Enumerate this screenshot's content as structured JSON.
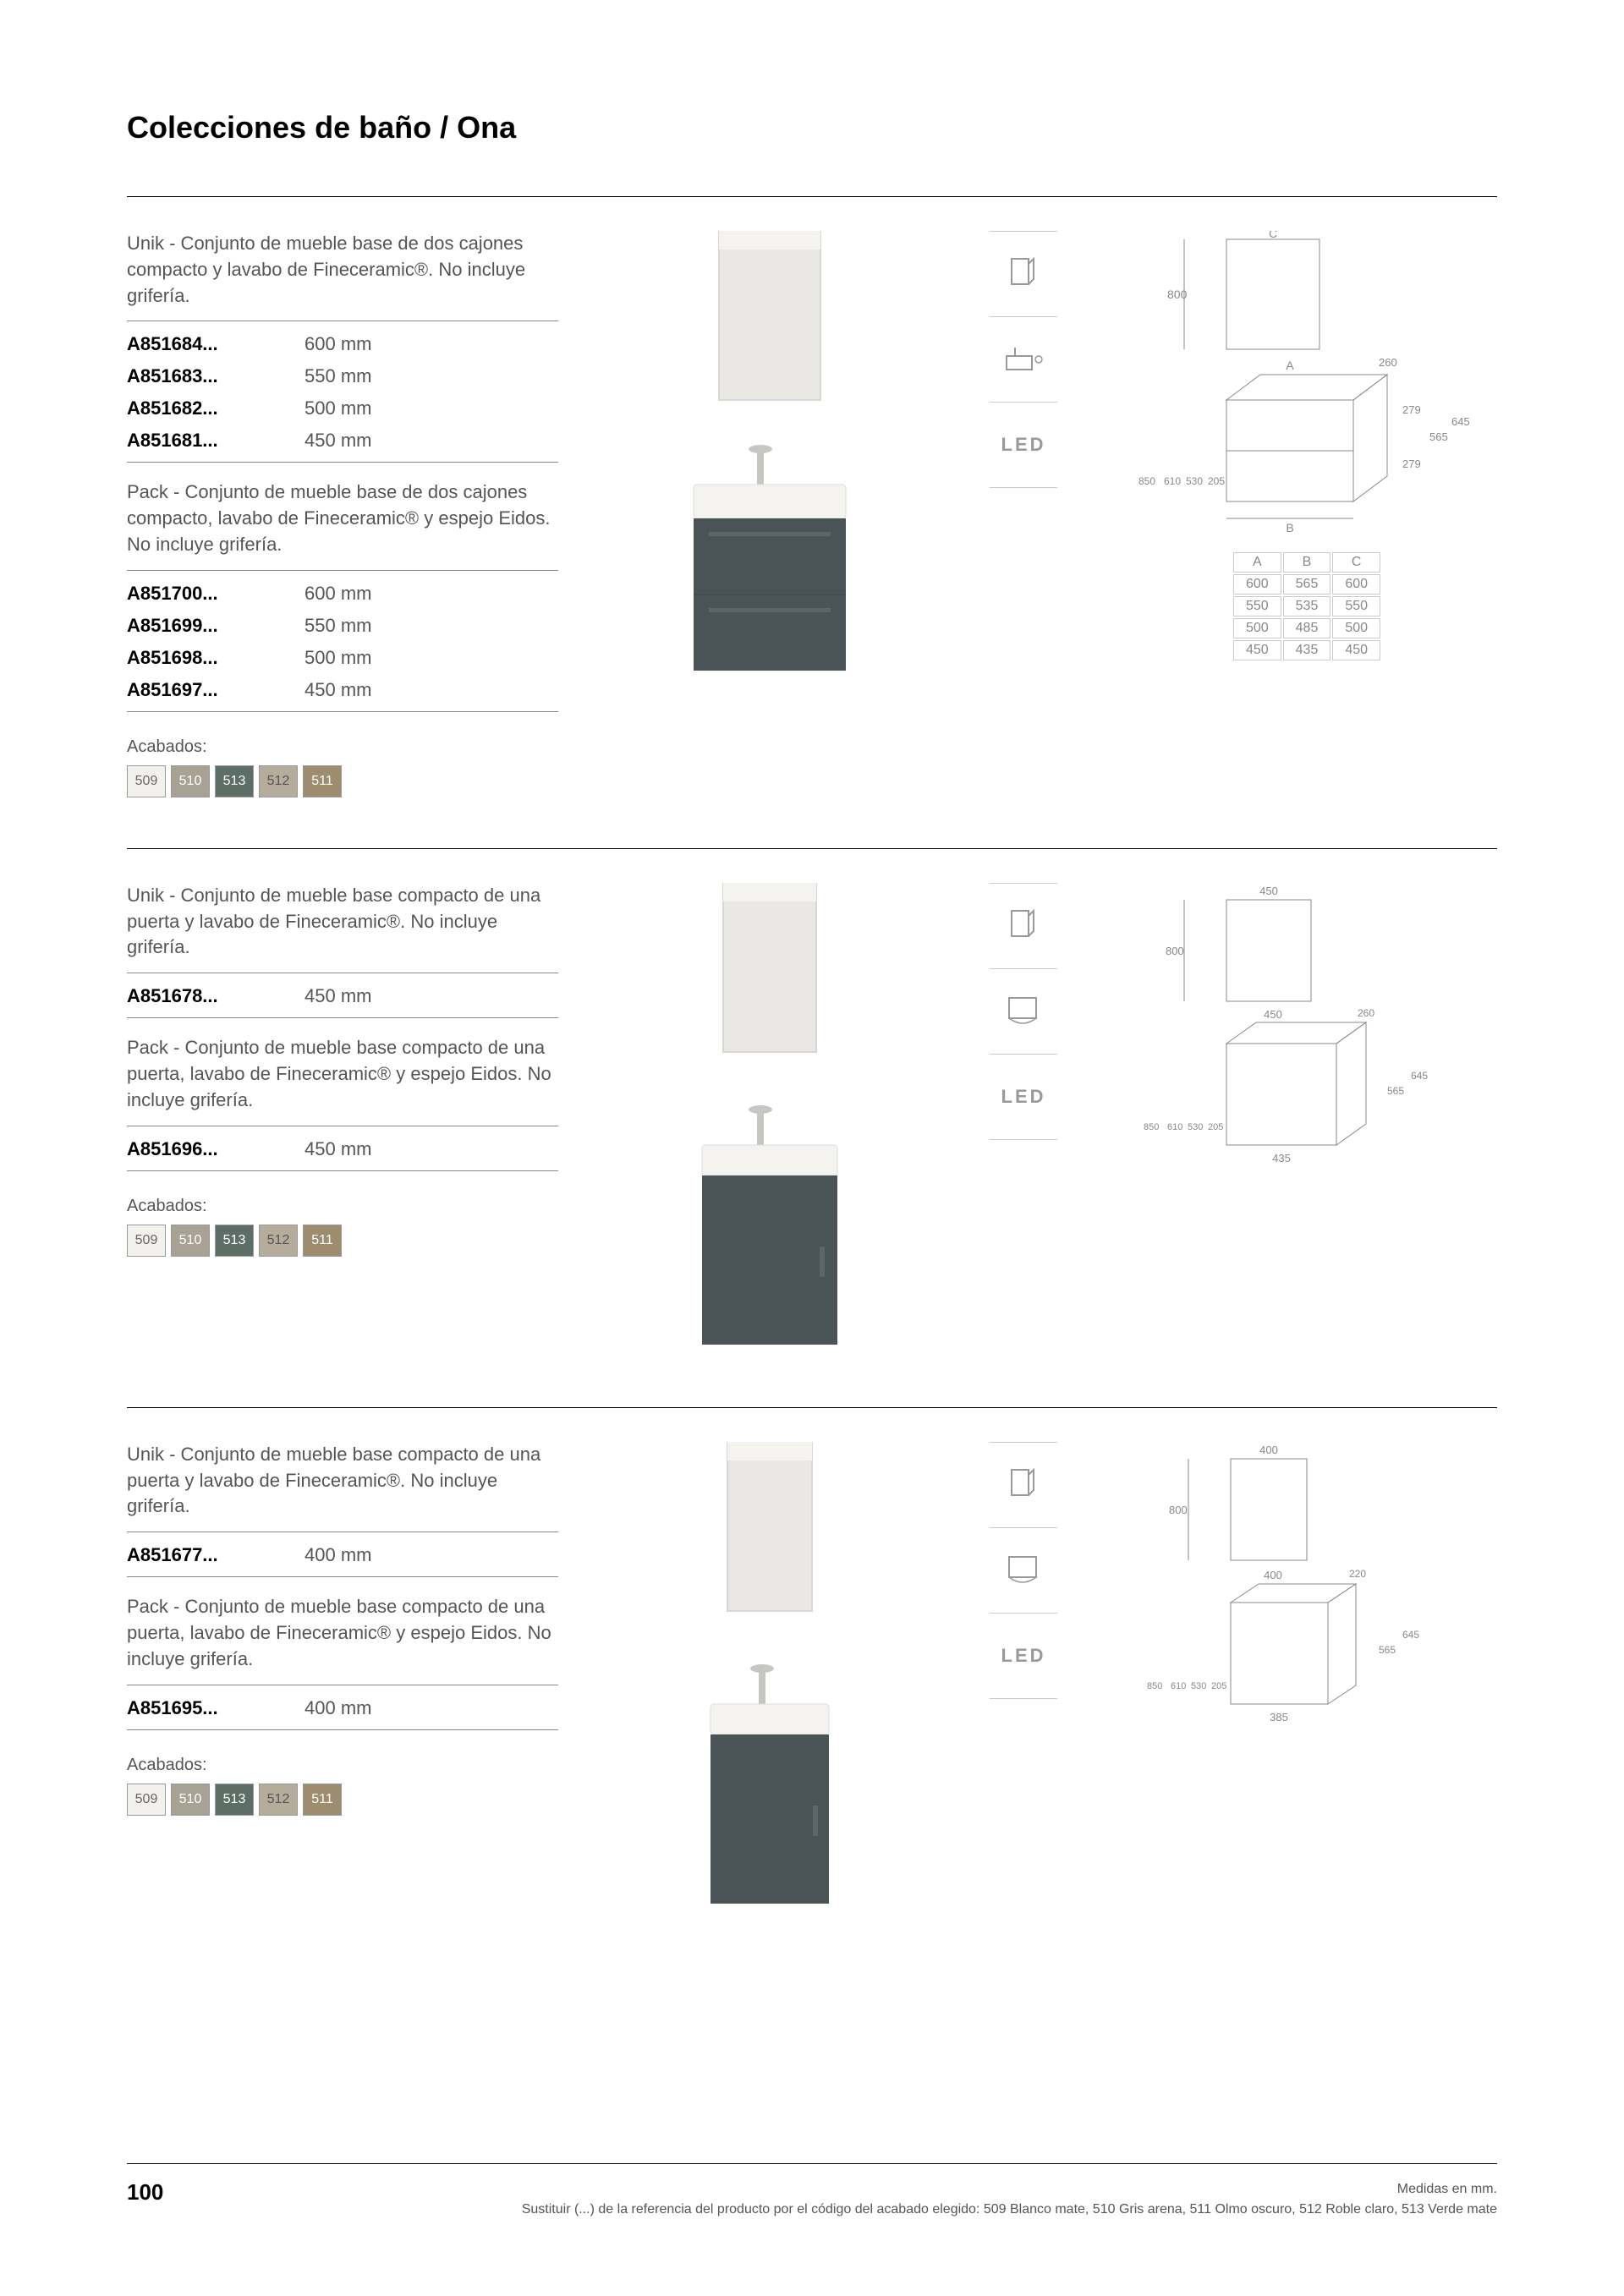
{
  "title": "Colecciones de baño / Ona",
  "finishes": {
    "label": "Acabados:",
    "swatches": [
      {
        "code": "509",
        "color": "#f3f1ed",
        "text_color": "#666"
      },
      {
        "code": "510",
        "color": "#a8a295",
        "text_color": "#fff"
      },
      {
        "code": "513",
        "color": "#5d6e67",
        "text_color": "#fff"
      },
      {
        "code": "512",
        "color": "#b5ac9c",
        "text_color": "#555"
      },
      {
        "code": "511",
        "color": "#9e8c6f",
        "text_color": "#fff"
      }
    ]
  },
  "icons": {
    "mirror": "mirror",
    "basin": "basin",
    "cabinet": "cabinet",
    "led": "LED"
  },
  "product_image": {
    "cabinet_color": "#4a5456",
    "basin_color": "#f4f3f0",
    "mirror_frame": "#d8d7d4",
    "mirror_fill": "#e9e8e5"
  },
  "diagram": {
    "stroke": "#888888",
    "dim_mirror_h": "800",
    "dim_depth_1": "260",
    "dim_279a": "279",
    "dim_279b": "279",
    "dim_565": "565",
    "dim_645": "645",
    "dim_205": "205",
    "dim_530": "530",
    "dim_610": "610",
    "dim_850": "850",
    "label_A": "A",
    "label_B": "B",
    "label_C": "C"
  },
  "dim_table": {
    "headers": [
      "A",
      "B",
      "C"
    ],
    "rows": [
      [
        "600",
        "565",
        "600"
      ],
      [
        "550",
        "535",
        "550"
      ],
      [
        "500",
        "485",
        "500"
      ],
      [
        "450",
        "435",
        "450"
      ]
    ]
  },
  "section1": {
    "block1_desc": "Unik - Conjunto de mueble base de dos cajones compacto y lavabo de Fineceramic®. No incluye grifería.",
    "block1_rows": [
      {
        "ref": "A851684...",
        "val": "600 mm"
      },
      {
        "ref": "A851683...",
        "val": "550 mm"
      },
      {
        "ref": "A851682...",
        "val": "500 mm"
      },
      {
        "ref": "A851681...",
        "val": "450 mm"
      }
    ],
    "block2_desc": "Pack - Conjunto de mueble base de dos cajones compacto, lavabo de Fineceramic® y espejo Eidos. No incluye grifería.",
    "block2_rows": [
      {
        "ref": "A851700...",
        "val": "600 mm"
      },
      {
        "ref": "A851699...",
        "val": "550 mm"
      },
      {
        "ref": "A851698...",
        "val": "500 mm"
      },
      {
        "ref": "A851697...",
        "val": "450 mm"
      }
    ]
  },
  "section2": {
    "block1_desc": "Unik - Conjunto de mueble base compacto de una puerta y lavabo de Fineceramic®. No incluye grifería.",
    "block1_rows": [
      {
        "ref": "A851678...",
        "val": "450 mm"
      }
    ],
    "block2_desc": "Pack - Conjunto de mueble base compacto de una puerta, lavabo de Fineceramic® y espejo Eidos. No incluye grifería.",
    "block2_rows": [
      {
        "ref": "A851696...",
        "val": "450 mm"
      }
    ],
    "diagram_top": "450",
    "diagram_w": "450",
    "diagram_b": "435"
  },
  "section3": {
    "block1_desc": "Unik - Conjunto de mueble base compacto de una puerta y lavabo de Fineceramic®. No incluye grifería.",
    "block1_rows": [
      {
        "ref": "A851677...",
        "val": "400 mm"
      }
    ],
    "block2_desc": "Pack - Conjunto de mueble base compacto de una puerta, lavabo de Fineceramic® y espejo Eidos. No incluye grifería.",
    "block2_rows": [
      {
        "ref": "A851695...",
        "val": "400 mm"
      }
    ],
    "diagram_top": "400",
    "diagram_w": "400",
    "diagram_depth": "220",
    "diagram_b": "385"
  },
  "footer": {
    "page": "100",
    "right1": "Medidas en mm.",
    "right2": "Sustituir (...) de la referencia del producto por el código del acabado elegido: 509 Blanco mate, 510 Gris arena, 511 Olmo oscuro, 512 Roble claro, 513 Verde mate"
  }
}
